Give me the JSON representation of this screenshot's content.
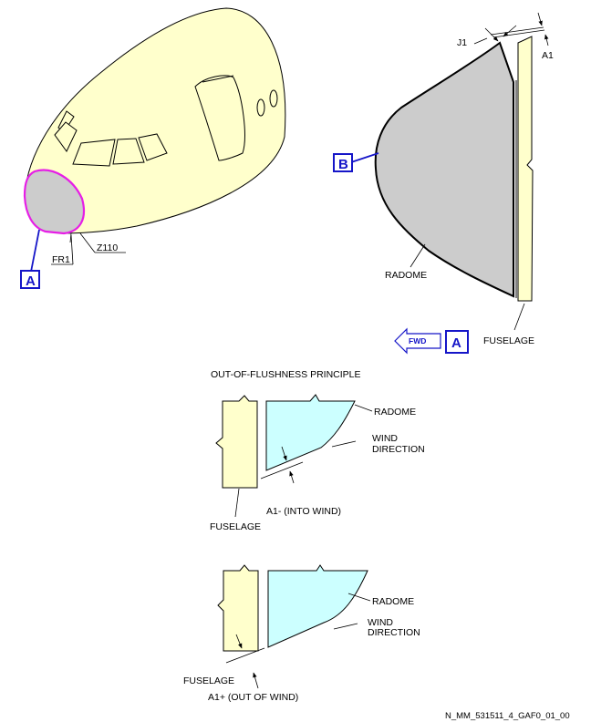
{
  "figure_ref": "N_MM_531511_4_GAF0_01_00",
  "colors": {
    "fuselage_fill": "#ffffcc",
    "radome_fill_detail": "#cccccc",
    "radome_fill_principle": "#ccffff",
    "highlight": "#e61ee6",
    "callout_blue": "#1515c8"
  },
  "aircraft_view": {
    "label_fr1": "FR1",
    "label_z110": "Z110",
    "callout": "A"
  },
  "detail_a": {
    "callout": "B",
    "label_j1": "J1",
    "label_a1": "A1",
    "label_radome": "RADOME",
    "label_fuselage": "FUSELAGE",
    "fwd_label": "FWD",
    "view_callout": "A"
  },
  "principle": {
    "title": "OUT-OF-FLUSHNESS PRINCIPLE",
    "into_wind": {
      "radome": "RADOME",
      "wind_line1": "WIND",
      "wind_line2": "DIRECTION",
      "a1_label": "A1- (INTO WIND)",
      "fuselage": "FUSELAGE"
    },
    "out_of_wind": {
      "radome": "RADOME",
      "wind_line1": "WIND",
      "wind_line2": "DIRECTION",
      "fuselage": "FUSELAGE",
      "a1_label": "A1+ (OUT OF WIND)"
    }
  }
}
